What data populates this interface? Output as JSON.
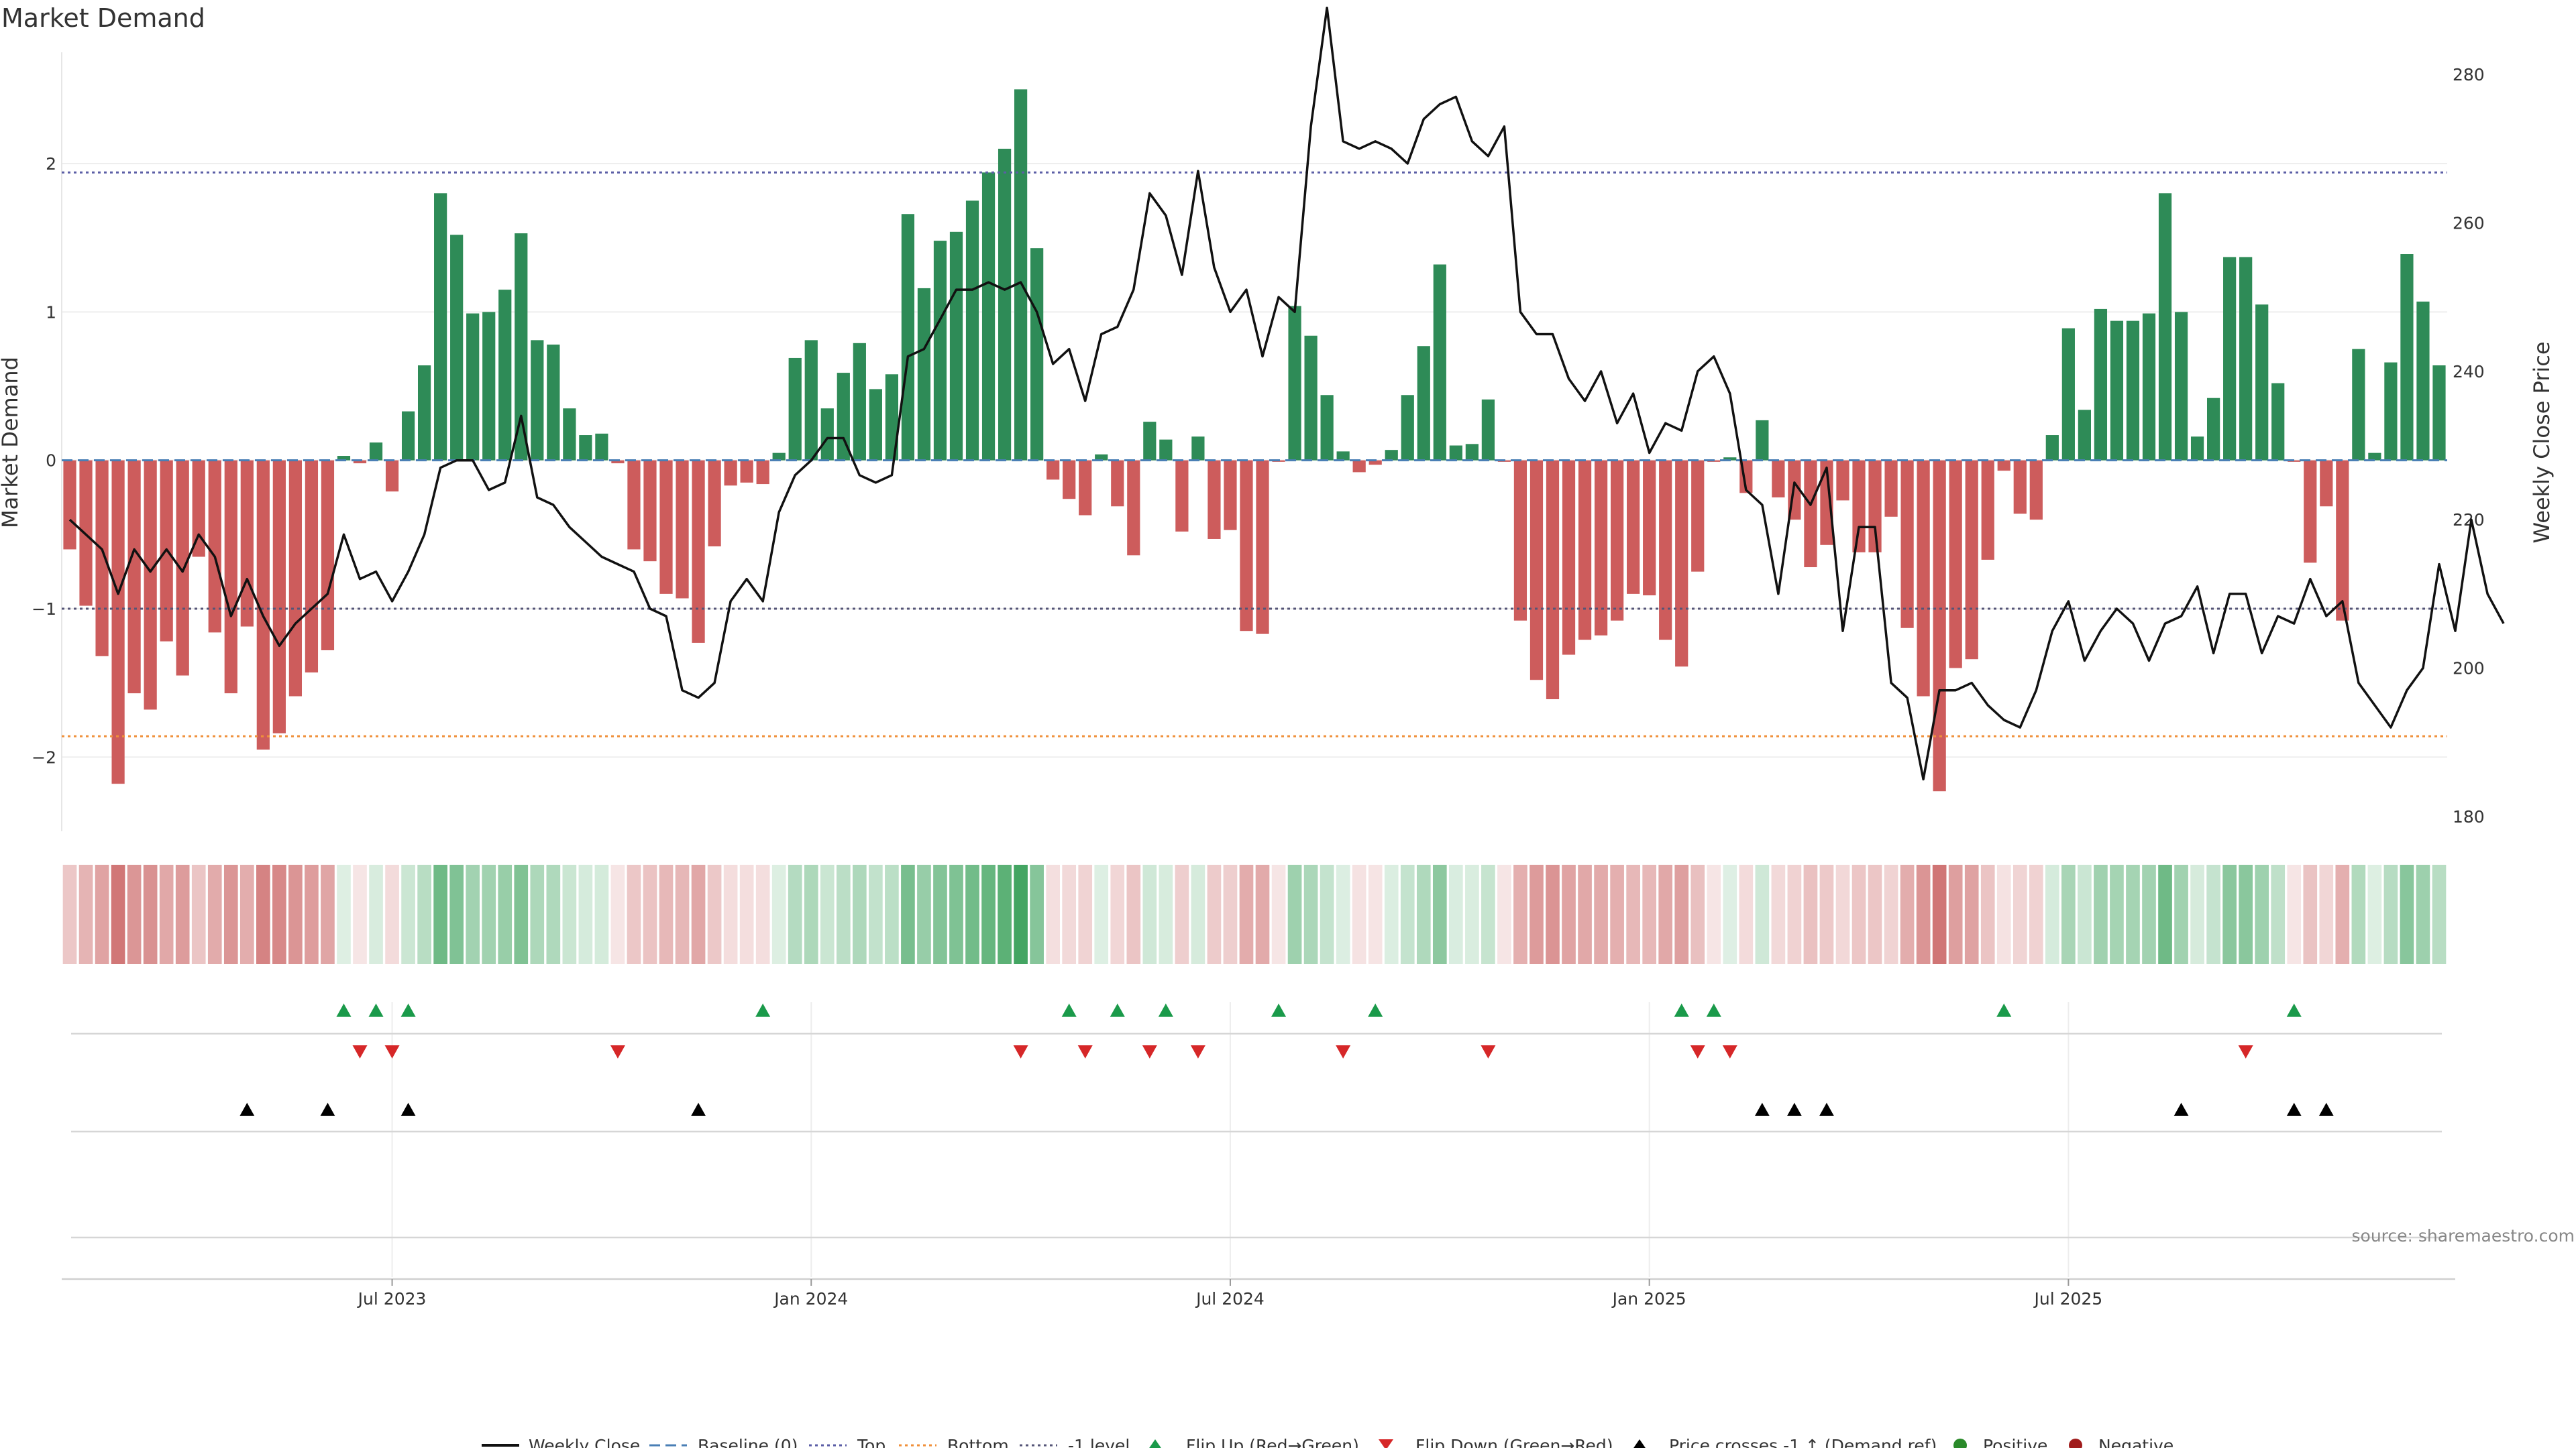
{
  "chart_data": {
    "type": "bar+line",
    "title": "Market Demand",
    "ylabel_left": "Market Demand",
    "ylabel_right": "Weekly Close Price",
    "ylim_left": [
      -2.5,
      2.75
    ],
    "ylim_right": [
      178,
      283
    ],
    "yticks_left": [
      2,
      1,
      0,
      -1,
      -2
    ],
    "yticks_left_labels": [
      "2",
      "1",
      "0",
      "−1",
      "−2"
    ],
    "yticks_right": [
      280,
      260,
      240,
      220,
      200,
      180
    ],
    "xticks": [
      20.5,
      46.5,
      72.5,
      98.5,
      124.5
    ],
    "xtick_labels": [
      "Jul 2023",
      "Jan 2024",
      "Jul 2024",
      "Jan 2025",
      "Jul 2025"
    ],
    "reference_lines": {
      "top": 1.94,
      "bottom": -1.86,
      "minus_one": -1.0,
      "baseline": 0
    },
    "demand": [
      -0.6,
      -0.98,
      -1.32,
      -2.18,
      -1.57,
      -1.68,
      -1.22,
      -1.45,
      -0.65,
      -1.16,
      -1.57,
      -1.12,
      -1.95,
      -1.84,
      -1.59,
      -1.43,
      -1.28,
      0.03,
      -0.02,
      0.12,
      -0.21,
      0.33,
      0.64,
      1.8,
      1.52,
      0.99,
      1.0,
      1.15,
      1.53,
      0.81,
      0.78,
      0.35,
      0.17,
      0.18,
      -0.02,
      -0.6,
      -0.68,
      -0.9,
      -0.93,
      -1.23,
      -0.58,
      -0.17,
      -0.15,
      -0.16,
      0.05,
      0.69,
      0.81,
      0.35,
      0.59,
      0.79,
      0.48,
      0.58,
      1.66,
      1.16,
      1.48,
      1.54,
      1.75,
      1.94,
      2.1,
      2.5,
      1.43,
      -0.13,
      -0.26,
      -0.37,
      0.04,
      -0.31,
      -0.64,
      0.26,
      0.14,
      -0.48,
      0.16,
      -0.53,
      -0.47,
      -1.15,
      -1.17,
      -0.01,
      1.04,
      0.84,
      0.44,
      0.06,
      -0.08,
      -0.03,
      0.07,
      0.44,
      0.77,
      1.32,
      0.1,
      0.11,
      0.41,
      -0.01,
      -1.08,
      -1.48,
      -1.61,
      -1.31,
      -1.21,
      -1.18,
      -1.08,
      -0.9,
      -0.91,
      -1.21,
      -1.39,
      -0.75,
      -0.01,
      0.02,
      -0.22,
      0.27,
      -0.25,
      -0.4,
      -0.72,
      -0.57,
      -0.27,
      -0.62,
      -0.62,
      -0.38,
      -1.13,
      -1.59,
      -2.23,
      -1.4,
      -1.34,
      -0.67,
      -0.07,
      -0.36,
      -0.4,
      0.17,
      0.89,
      0.34,
      1.02,
      0.94,
      0.94,
      0.99,
      1.8,
      1.0,
      0.16,
      0.42,
      1.37,
      1.37,
      1.05,
      0.52,
      -0.01,
      -0.69,
      -0.31,
      -1.08,
      0.75,
      0.05,
      0.66,
      1.39,
      1.07,
      0.64
    ],
    "weekly_close": [
      220,
      218,
      216,
      210,
      216,
      213,
      216,
      213,
      218,
      215,
      207,
      212,
      207,
      203,
      206,
      208,
      210,
      218,
      212,
      213,
      209,
      213,
      218,
      227,
      228,
      228,
      224,
      225,
      234,
      223,
      222,
      219,
      217,
      215,
      214,
      213,
      208,
      207,
      197,
      196,
      198,
      209,
      212,
      209,
      221,
      226,
      228,
      231,
      231,
      226,
      225,
      226,
      242,
      243,
      247,
      251,
      251,
      252,
      251,
      252,
      248,
      241,
      243,
      236,
      245,
      246,
      251,
      264,
      261,
      253,
      267,
      254,
      248,
      251,
      242,
      250,
      248,
      273,
      289,
      271,
      270,
      271,
      270,
      268,
      274,
      276,
      277,
      271,
      269,
      273,
      248,
      245,
      245,
      239,
      236,
      240,
      233,
      237,
      229,
      233,
      232,
      240,
      242,
      237,
      224,
      222,
      210,
      225,
      222,
      227,
      205,
      219,
      219,
      198,
      196,
      185,
      197,
      197,
      198,
      195,
      193,
      192,
      197,
      205,
      209,
      201,
      205,
      208,
      206,
      201,
      206,
      207,
      211,
      202,
      210,
      210,
      202,
      207,
      206,
      212,
      207,
      209,
      198,
      195,
      192,
      197,
      200,
      214,
      205,
      220,
      210,
      206
    ],
    "flip_up_weeks": [
      17,
      19,
      21,
      43,
      62,
      65,
      68,
      75,
      81,
      100,
      102,
      120,
      138
    ],
    "flip_down_weeks": [
      18,
      20,
      34,
      59,
      63,
      67,
      70,
      79,
      88,
      101,
      103,
      135
    ],
    "price_cross_weeks": [
      11,
      16,
      21,
      39,
      105,
      107,
      109,
      131,
      138,
      140
    ],
    "source": "source: sharemaestro.com",
    "legend": [
      "Weekly Close",
      "Baseline (0)",
      "Top",
      "Bottom",
      "-1 level",
      "Flip Up (Red→Green)",
      "Flip Down (Green→Red)",
      "Price crosses -1 ↑ (Demand ref)",
      "Positive",
      "Negative"
    ],
    "colors": {
      "positive": "#2e8b57",
      "negative": "#cd5c5c",
      "price": "#111111",
      "top": "#5b5ea6",
      "bottom": "#f0903a",
      "minus_one": "#555577",
      "baseline": "#4a7fb5",
      "flip_up": "#1a9a4a",
      "flip_down": "#d62728",
      "cross": "#000000",
      "positive_dot": "#2a8a2a",
      "negative_dot": "#a01c1c"
    }
  }
}
